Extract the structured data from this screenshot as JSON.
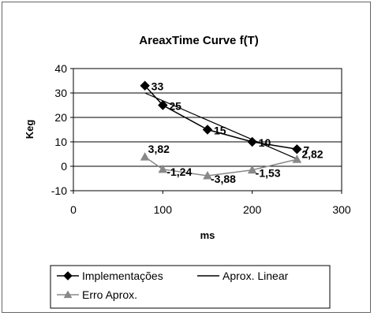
{
  "chart_data": {
    "type": "line",
    "title": "AreaxTime Curve f(T)",
    "xlabel": "ms",
    "ylabel": "Keg",
    "xlim": [
      0,
      300
    ],
    "ylim": [
      -10,
      40
    ],
    "xticks": [
      0,
      100,
      200,
      300
    ],
    "yticks": [
      -10,
      0,
      10,
      20,
      30,
      40
    ],
    "grid": "horizontal",
    "legend_position": "bottom",
    "series": [
      {
        "name": "Implementações",
        "marker": "diamond",
        "color": "#000000",
        "x": [
          80,
          100,
          150,
          200,
          250
        ],
        "y": [
          33,
          25,
          15,
          10,
          7
        ],
        "labels": [
          "33",
          "25",
          "15",
          "10",
          "7"
        ]
      },
      {
        "name": "Aprox. Linear",
        "marker": "none",
        "color": "#000000",
        "x": [
          80,
          250
        ],
        "y": [
          30,
          3
        ]
      },
      {
        "name": "Erro Aprox.",
        "marker": "triangle",
        "color": "#888888",
        "x": [
          80,
          100,
          150,
          200,
          250
        ],
        "y": [
          3.82,
          -1.24,
          -3.88,
          -1.53,
          2.82
        ],
        "labels": [
          "3,82",
          "-1,24",
          "-3,88",
          "-1,53",
          "2,82"
        ]
      }
    ]
  }
}
